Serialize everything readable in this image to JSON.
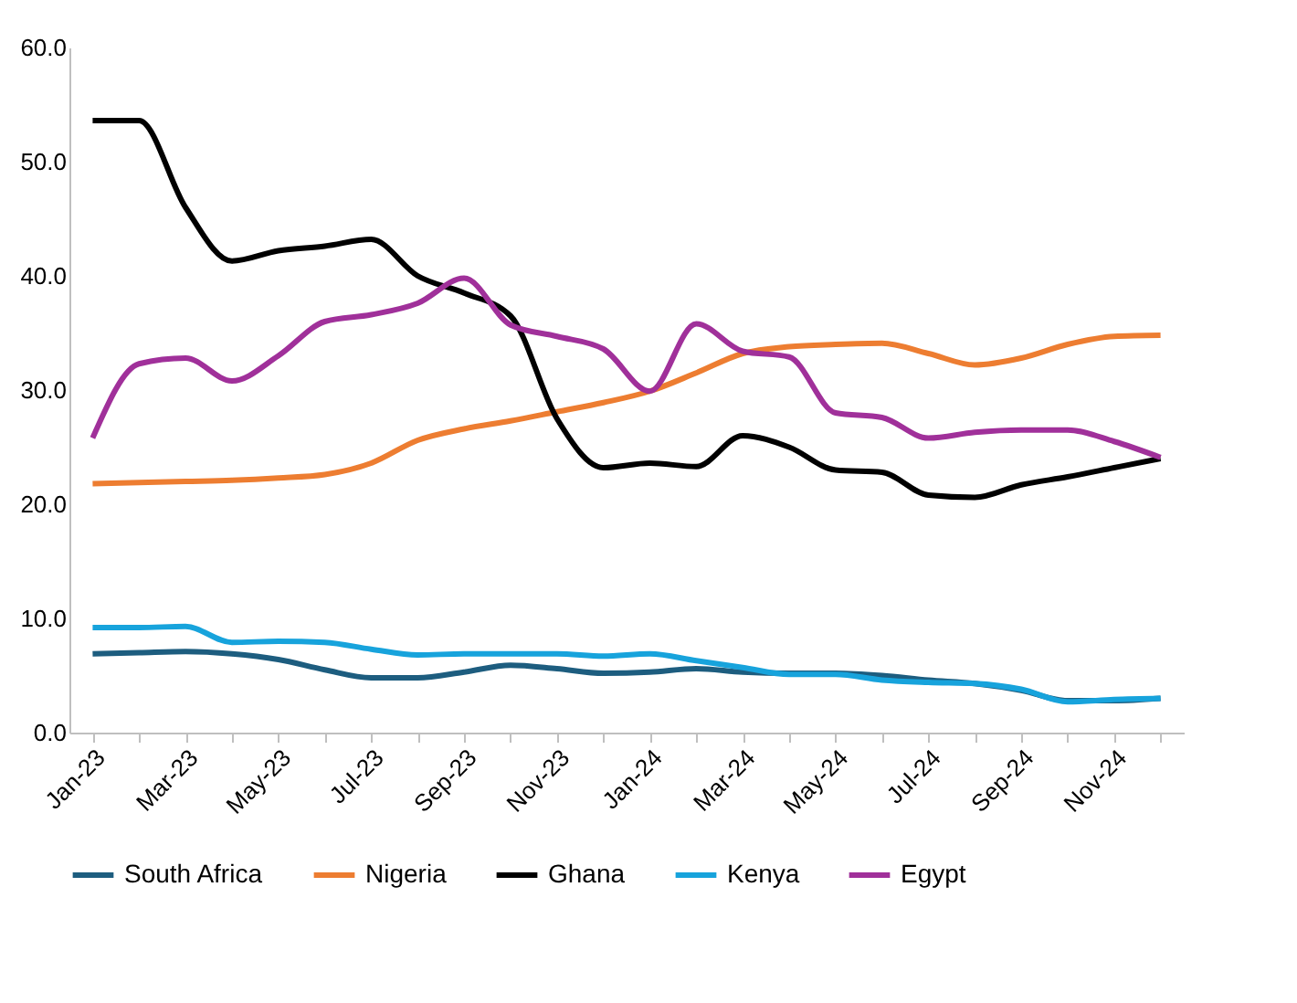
{
  "chart_data": {
    "type": "line",
    "categories": [
      "Jan-23",
      null,
      "Mar-23",
      null,
      "May-23",
      null,
      "Jul-23",
      null,
      "Sep-23",
      null,
      "Nov-23",
      null,
      "Jan-24",
      null,
      "Mar-24",
      null,
      "May-24",
      null,
      "Jul-24",
      null,
      "Sep-24",
      null,
      "Nov-24",
      null
    ],
    "series": [
      {
        "name": "South Africa",
        "color": "#1d5d7f",
        "values": [
          6.9,
          7.0,
          7.1,
          6.9,
          6.4,
          5.5,
          4.8,
          4.8,
          5.3,
          5.9,
          5.6,
          5.2,
          5.3,
          5.6,
          5.3,
          5.2,
          5.2,
          5.0,
          4.6,
          4.3,
          3.7,
          2.8,
          2.8,
          3.0
        ]
      },
      {
        "name": "Nigeria",
        "color": "#ed7d31",
        "values": [
          21.8,
          21.9,
          22.0,
          22.1,
          22.3,
          22.6,
          23.6,
          25.6,
          26.6,
          27.3,
          28.1,
          28.9,
          29.9,
          31.5,
          33.2,
          33.8,
          34.0,
          34.1,
          33.2,
          32.2,
          32.8,
          34.0,
          34.7,
          34.8
        ]
      },
      {
        "name": "Ghana",
        "color": "#000000",
        "values": [
          53.6,
          53.6,
          46.0,
          41.3,
          42.2,
          42.6,
          43.2,
          40.0,
          38.5,
          36.5,
          27.5,
          23.2,
          23.6,
          23.3,
          26.0,
          25.0,
          23.0,
          22.8,
          20.8,
          20.6,
          21.7,
          22.4,
          23.2,
          24.0
        ]
      },
      {
        "name": "Kenya",
        "color": "#17a3dc",
        "values": [
          9.2,
          9.2,
          9.3,
          7.9,
          8.0,
          7.9,
          7.3,
          6.8,
          6.9,
          6.9,
          6.9,
          6.7,
          6.9,
          6.3,
          5.7,
          5.1,
          5.1,
          4.6,
          4.4,
          4.3,
          3.8,
          2.7,
          2.9,
          3.0
        ]
      },
      {
        "name": "Egypt",
        "color": "#a0309a",
        "values": [
          25.8,
          32.3,
          32.8,
          30.8,
          33.0,
          36.0,
          36.6,
          37.6,
          39.8,
          35.7,
          34.7,
          33.6,
          29.9,
          35.8,
          33.4,
          32.9,
          28.0,
          27.6,
          25.8,
          26.3,
          26.5,
          26.5,
          25.5,
          24.1
        ]
      }
    ],
    "ylim": [
      0,
      60
    ],
    "yticks": [
      {
        "value": 0,
        "label": "0.0"
      },
      {
        "value": 10,
        "label": "10.0"
      },
      {
        "value": 20,
        "label": "20.0"
      },
      {
        "value": 30,
        "label": "30.0"
      },
      {
        "value": 40,
        "label": "40.0"
      },
      {
        "value": 50,
        "label": "50.0"
      },
      {
        "value": 60,
        "label": "60.0"
      }
    ],
    "grid": false,
    "legend": "bottom",
    "marker": "none",
    "line_style": "solid"
  }
}
